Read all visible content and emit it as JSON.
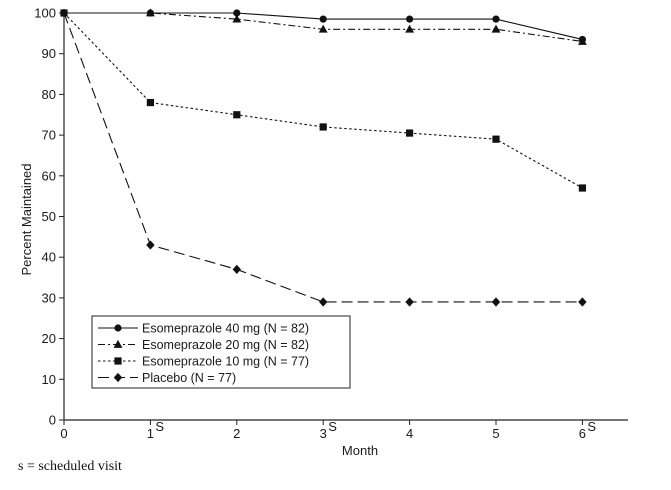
{
  "chart_data": {
    "type": "line",
    "title": "",
    "xlabel": "Month",
    "ylabel": "Percent Maintained",
    "xlim": [
      0,
      6.6
    ],
    "ylim": [
      0,
      100
    ],
    "grid": false,
    "x_ticks": [
      {
        "value": 0,
        "label": "0",
        "scheduled": false
      },
      {
        "value": 1,
        "label": "1",
        "scheduled": true
      },
      {
        "value": 2,
        "label": "2",
        "scheduled": false
      },
      {
        "value": 3,
        "label": "3",
        "scheduled": true
      },
      {
        "value": 4,
        "label": "4",
        "scheduled": false
      },
      {
        "value": 5,
        "label": "5",
        "scheduled": false
      },
      {
        "value": 6,
        "label": "6",
        "scheduled": true
      }
    ],
    "scheduled_marker": "S",
    "y_ticks": [
      0,
      10,
      20,
      30,
      40,
      50,
      60,
      70,
      80,
      90,
      100
    ],
    "legend_position": "bottom-left",
    "series": [
      {
        "name": "Esomeprazole 40 mg (N = 82)",
        "marker": "circle",
        "dash": "solid",
        "x": [
          0,
          1,
          2,
          3,
          4,
          5,
          6
        ],
        "values": [
          100,
          100,
          100,
          98.5,
          98.5,
          98.5,
          93.5
        ]
      },
      {
        "name": "Esomeprazole 20 mg (N = 82)",
        "marker": "triangle",
        "dash": "dashdot",
        "x": [
          0,
          1,
          2,
          3,
          4,
          5,
          6
        ],
        "values": [
          100,
          100,
          98.5,
          96,
          96,
          96,
          93
        ]
      },
      {
        "name": "Esomeprazole 10 mg (N = 77)",
        "marker": "square",
        "dash": "dotted",
        "x": [
          0,
          1,
          2,
          3,
          4,
          5,
          6
        ],
        "values": [
          100,
          78,
          75,
          72,
          70.5,
          69,
          57
        ]
      },
      {
        "name": "Placebo (N = 77)",
        "marker": "diamond",
        "dash": "dashed",
        "x": [
          0,
          1,
          2,
          3,
          4,
          5,
          6
        ],
        "values": [
          100,
          43,
          37,
          29,
          29,
          29,
          29
        ]
      }
    ]
  },
  "footnote": "s = scheduled visit"
}
